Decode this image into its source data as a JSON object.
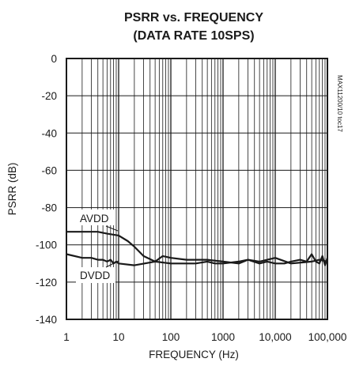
{
  "chart_data": {
    "type": "line",
    "title": "PSRR vs. FREQUENCY",
    "subtitle": "(DATA RATE 10SPS)",
    "xlabel": "FREQUENCY (Hz)",
    "ylabel": "PSRR (dB)",
    "x_scale": "log",
    "xlim": [
      1,
      100000
    ],
    "ylim": [
      -140,
      0
    ],
    "x_ticks": [
      1,
      10,
      100,
      1000,
      10000,
      100000
    ],
    "x_tick_labels": [
      "1",
      "10",
      "100",
      "1000",
      "10,000",
      "100,000"
    ],
    "y_ticks": [
      0,
      -20,
      -40,
      -60,
      -80,
      -100,
      -120,
      -140
    ],
    "y_tick_labels": [
      "0",
      "-20",
      "-40",
      "-60",
      "-80",
      "-100",
      "-120",
      "-140"
    ],
    "grid": true,
    "annotation": "MAX11200/10 toc17",
    "series": [
      {
        "name": "AVDD",
        "x": [
          1,
          2,
          4,
          6,
          10,
          15,
          20,
          30,
          50,
          70,
          100,
          200,
          300,
          500,
          1000,
          2000,
          3000,
          5000,
          10000,
          20000,
          50000,
          70000,
          100000
        ],
        "y": [
          -93,
          -93,
          -93,
          -94,
          -95,
          -98,
          -101,
          -106,
          -109,
          -106,
          -107,
          -108,
          -108,
          -108,
          -109,
          -110,
          -108,
          -109,
          -107,
          -110,
          -109,
          -108,
          -109
        ]
      },
      {
        "name": "DVDD",
        "x": [
          1,
          2,
          3,
          4,
          5,
          6,
          7,
          8,
          9,
          10,
          20,
          50,
          100,
          200,
          300,
          500,
          700,
          1000,
          2000,
          3000,
          5000,
          7000,
          10000,
          15000,
          20000,
          30000,
          40000,
          50000,
          60000,
          70000,
          80000,
          90000,
          100000
        ],
        "y": [
          -105,
          -107,
          -107,
          -108,
          -108,
          -109,
          -108,
          -110,
          -109,
          -110,
          -111,
          -109,
          -110,
          -110,
          -110,
          -109,
          -110,
          -110,
          -109,
          -108,
          -110,
          -109,
          -110,
          -110,
          -109,
          -108,
          -109,
          -105,
          -109,
          -110,
          -106,
          -111,
          -107
        ]
      }
    ]
  }
}
